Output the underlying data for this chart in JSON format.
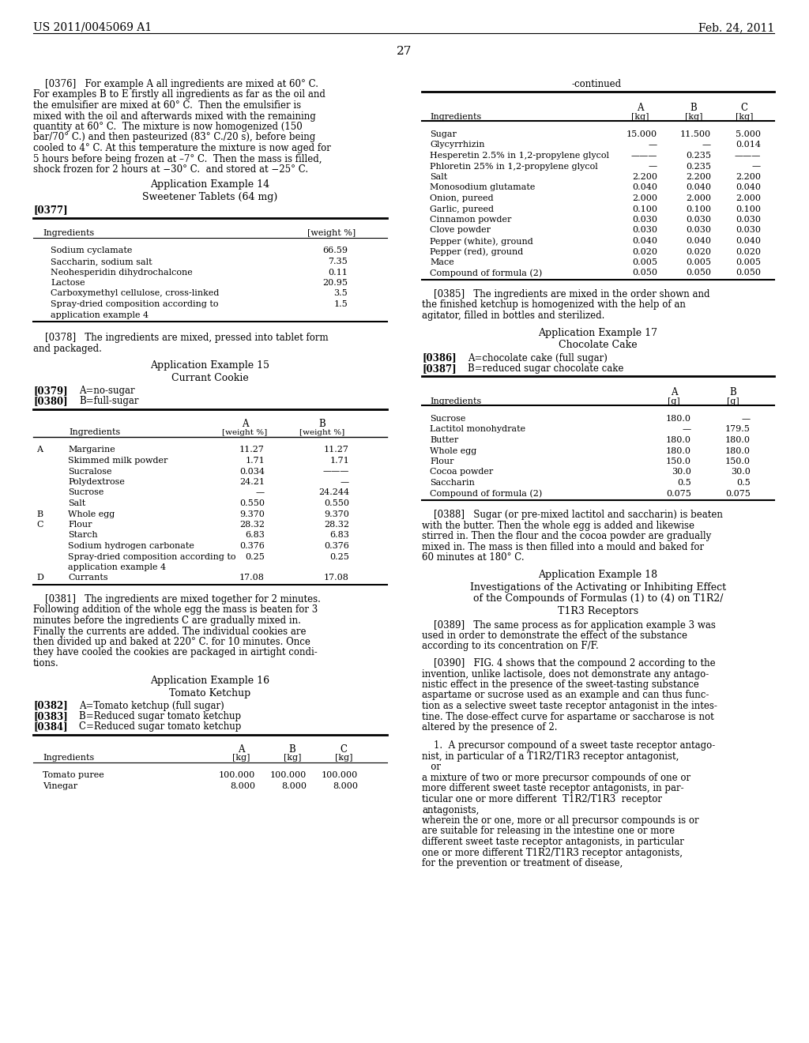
{
  "background_color": "#ffffff",
  "page_header_left": "US 2011/0045069 A1",
  "page_header_right": "Feb. 24, 2011",
  "page_number": "27"
}
